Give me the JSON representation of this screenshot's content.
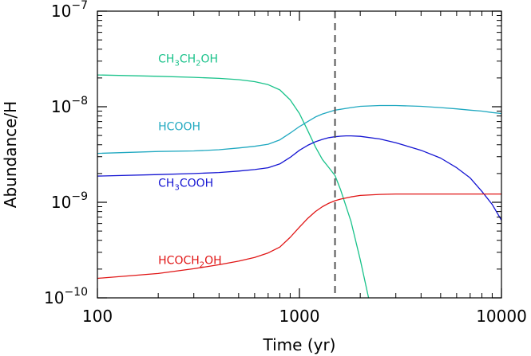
{
  "chart_data": {
    "type": "line",
    "title": "",
    "xlabel": "Time (yr)",
    "ylabel": "Abundance/H",
    "xscale": "log",
    "yscale": "log",
    "xlim": [
      100,
      10000
    ],
    "ylim": [
      1e-10,
      1e-07
    ],
    "x_ticks": [
      {
        "value": 100,
        "label": "100"
      },
      {
        "value": 1000,
        "label": "1000"
      },
      {
        "value": 10000,
        "label": "10000"
      }
    ],
    "y_ticks": [
      {
        "value": 1e-10,
        "base": "10",
        "exp": "−10"
      },
      {
        "value": 1e-09,
        "base": "10",
        "exp": "−9"
      },
      {
        "value": 1e-08,
        "base": "10",
        "exp": "−8"
      },
      {
        "value": 1e-07,
        "base": "10",
        "exp": "−7"
      }
    ],
    "vline": {
      "x": 1500,
      "style": "dashed",
      "color": "#555555"
    },
    "grid": false,
    "series": [
      {
        "name": "CH3CH2OH",
        "label_parts": [
          [
            "CH",
            ""
          ],
          [
            "3",
            "sub"
          ],
          [
            "CH",
            ""
          ],
          [
            "2",
            "sub"
          ],
          [
            "OH",
            ""
          ]
        ],
        "color": "#19c28a",
        "label_at": [
          200,
          2.9e-08
        ],
        "x": [
          100,
          200,
          300,
          400,
          500,
          600,
          700,
          800,
          900,
          1000,
          1100,
          1200,
          1300,
          1400,
          1500,
          1600,
          1800,
          2000,
          2200
        ],
        "y": [
          2.15e-08,
          2.08e-08,
          2.03e-08,
          1.98e-08,
          1.92e-08,
          1.83e-08,
          1.7e-08,
          1.5e-08,
          1.18e-08,
          8.5e-09,
          5.6e-09,
          3.8e-09,
          2.8e-09,
          2.3e-09,
          1.9e-09,
          1.35e-09,
          6.3e-10,
          2.5e-10,
          1e-10
        ]
      },
      {
        "name": "HCOOH",
        "label_parts": [
          [
            "HCOOH",
            ""
          ]
        ],
        "color": "#1fa8c0",
        "label_at": [
          200,
          5.7e-09
        ],
        "x": [
          100,
          200,
          300,
          400,
          500,
          600,
          700,
          800,
          900,
          1000,
          1100,
          1200,
          1300,
          1500,
          1800,
          2000,
          2500,
          3000,
          4000,
          5000,
          6000,
          7000,
          8000,
          9000,
          10000
        ],
        "y": [
          3.25e-09,
          3.4e-09,
          3.45e-09,
          3.55e-09,
          3.7e-09,
          3.85e-09,
          4.05e-09,
          4.5e-09,
          5.3e-09,
          6.2e-09,
          7e-09,
          7.8e-09,
          8.4e-09,
          9.2e-09,
          9.8e-09,
          1.01e-08,
          1.03e-08,
          1.03e-08,
          1.01e-08,
          9.8e-09,
          9.5e-09,
          9.2e-09,
          9e-09,
          8.7e-09,
          8.5e-09
        ]
      },
      {
        "name": "CH3COOH",
        "label_parts": [
          [
            "CH",
            ""
          ],
          [
            "3",
            "sub"
          ],
          [
            "COOH",
            ""
          ]
        ],
        "color": "#1414d2",
        "label_at": [
          200,
          1.45e-09
        ],
        "x": [
          100,
          200,
          300,
          400,
          500,
          600,
          700,
          800,
          900,
          1000,
          1100,
          1200,
          1300,
          1400,
          1500,
          1600,
          1700,
          1800,
          2000,
          2500,
          3000,
          4000,
          5000,
          6000,
          7000,
          8000,
          9000,
          10000
        ],
        "y": [
          1.88e-09,
          1.95e-09,
          2e-09,
          2.05e-09,
          2.12e-09,
          2.2e-09,
          2.3e-09,
          2.52e-09,
          2.95e-09,
          3.5e-09,
          3.95e-09,
          4.3e-09,
          4.55e-09,
          4.75e-09,
          4.85e-09,
          4.92e-09,
          4.95e-09,
          4.95e-09,
          4.9e-09,
          4.6e-09,
          4.2e-09,
          3.5e-09,
          2.9e-09,
          2.3e-09,
          1.8e-09,
          1.3e-09,
          9.5e-10,
          6.5e-10
        ]
      },
      {
        "name": "HCOCH2OH",
        "label_parts": [
          [
            "HCOCH",
            ""
          ],
          [
            "2",
            "sub"
          ],
          [
            "OH",
            ""
          ]
        ],
        "color": "#e01515",
        "label_at": [
          200,
          2.25e-10
        ],
        "x": [
          100,
          200,
          300,
          400,
          500,
          600,
          700,
          800,
          900,
          1000,
          1100,
          1200,
          1300,
          1400,
          1500,
          1600,
          1800,
          2000,
          2500,
          3000,
          4000,
          5000,
          6000,
          7000,
          8000,
          9000,
          10000
        ],
        "y": [
          1.6e-10,
          1.8e-10,
          2.02e-10,
          2.22e-10,
          2.42e-10,
          2.65e-10,
          2.95e-10,
          3.4e-10,
          4.3e-10,
          5.5e-10,
          6.8e-10,
          8e-10,
          9e-10,
          9.8e-10,
          1.04e-09,
          1.08e-09,
          1.14e-09,
          1.18e-09,
          1.21e-09,
          1.22e-09,
          1.22e-09,
          1.22e-09,
          1.22e-09,
          1.22e-09,
          1.22e-09,
          1.22e-09,
          1.22e-09
        ]
      }
    ]
  }
}
